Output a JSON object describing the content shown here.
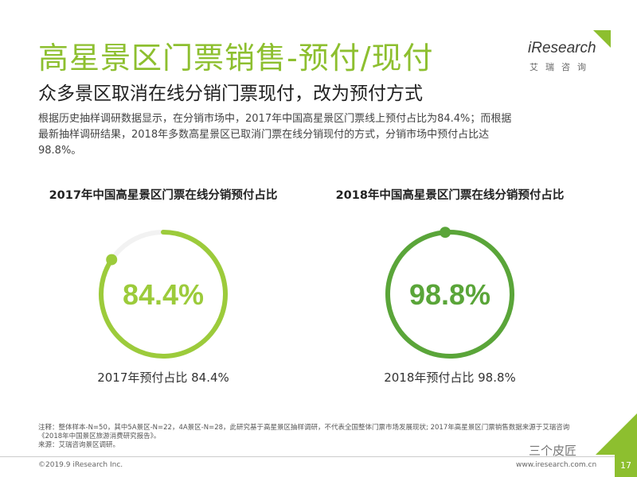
{
  "header": {
    "title": "高星景区门票销售-预付/现付",
    "subtitle": "众多景区取消在线分销门票现付，改为预付方式",
    "intro": "根据历史抽样调研数据显示，在分销市场中，2017年中国高星景区门票线上预付占比为84.4%；而根据最新抽样调研结果，2018年多数高星景区已取消门票在线分销现付的方式，分销市场中预付占比达98.8%。"
  },
  "logo": {
    "wordmark": "iResearch",
    "cn": "艾瑞咨询",
    "color": "#8dbf2f"
  },
  "chart_data": [
    {
      "type": "pie",
      "title": "2017年中国高星景区门票在线分销预付占比",
      "center_label": "84.4%",
      "value": 84.4,
      "caption": "2017年预付占比 84.4%",
      "color": "#9ccb3b"
    },
    {
      "type": "pie",
      "title": "2018年中国高星景区门票在线分销预付占比",
      "center_label": "98.8%",
      "value": 98.8,
      "caption": "2018年预付占比 98.8%",
      "color": "#5aa539"
    }
  ],
  "footer": {
    "note_line1": "注释：整体样本-N=50，其中5A景区-N=22，4A景区-N=28，此研究基于高星景区抽样调研，不代表全国整体门票市场发展现状; 2017年高星景区门票销售数据来源于艾瑞咨询",
    "note_line2": "《2018年中国景区旅游消费研究报告》。",
    "note_line3": "来源：艾瑞咨询景区调研。",
    "copyright": "©2019.9 iResearch Inc.",
    "website": "www.iresearch.com.cn",
    "page_number": "17",
    "watermark": "三个皮匠"
  }
}
